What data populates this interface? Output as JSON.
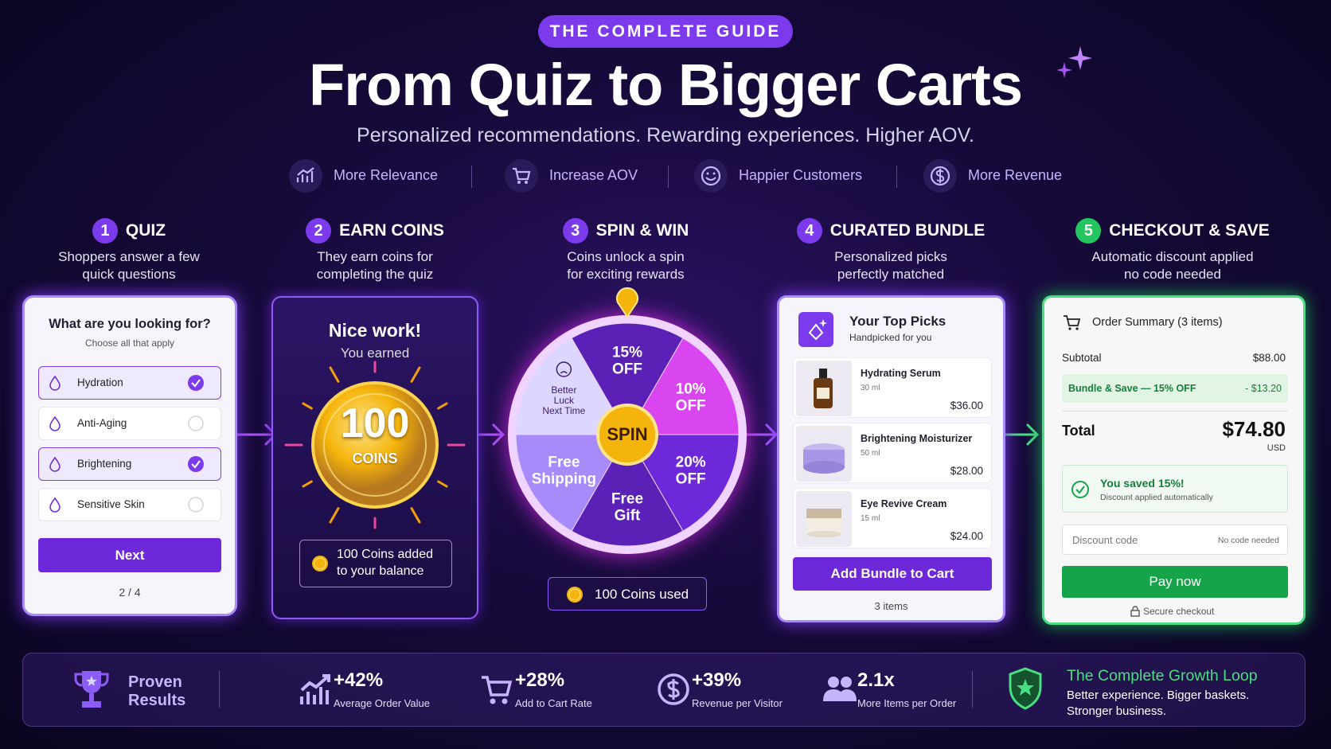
{
  "header": {
    "badge": "THE COMPLETE GUIDE",
    "title": "From Quiz to Bigger Carts",
    "subtitle": "Personalized recommendations. Rewarding experiences. Higher AOV."
  },
  "benefits": [
    "More Relevance",
    "Increase AOV",
    "Happier Customers",
    "More Revenue"
  ],
  "steps": [
    {
      "number": "1",
      "title": "QUIZ",
      "description": [
        "Shoppers answer a few",
        "quick questions"
      ],
      "color": "#7c3aed"
    },
    {
      "number": "2",
      "title": "EARN COINS",
      "description": [
        "They earn coins for",
        "completing the quiz"
      ],
      "color": "#7c3aed"
    },
    {
      "number": "3",
      "title": "SPIN & WIN",
      "description": [
        "Coins unlock a spin",
        "for exciting rewards"
      ],
      "color": "#7c3aed"
    },
    {
      "number": "4",
      "title": "CURATED BUNDLE",
      "description": [
        "Personalized picks",
        "perfectly matched"
      ],
      "color": "#7c3aed"
    },
    {
      "number": "5",
      "title": "CHECKOUT & SAVE",
      "description": [
        "Automatic discount applied",
        "no code needed"
      ],
      "color": "#22c55e"
    }
  ],
  "quiz": {
    "question": "What are you looking for?",
    "hint": "Choose all that apply",
    "options": [
      {
        "label": "Hydration",
        "checked": true
      },
      {
        "label": "Anti-Aging",
        "checked": false
      },
      {
        "label": "Brightening",
        "checked": true
      },
      {
        "label": "Sensitive Skin",
        "checked": false
      }
    ],
    "button": "Next",
    "progress": "2 / 4"
  },
  "coins": {
    "heading": "Nice work!",
    "subheading": "You earned",
    "amount": "100",
    "unit": "COINS",
    "note": [
      "100 Coins added",
      "to your balance"
    ]
  },
  "wheel": {
    "center": "SPIN",
    "segments": [
      {
        "lines": [
          "15%",
          "OFF"
        ],
        "color": "#5b21b6",
        "text_color": "#ffffff"
      },
      {
        "lines": [
          "10%",
          "OFF"
        ],
        "color": "#d946ef",
        "text_color": "#ffffff"
      },
      {
        "lines": [
          "20%",
          "OFF"
        ],
        "color": "#6d28d9",
        "text_color": "#ffffff"
      },
      {
        "lines": [
          "Free",
          "Gift"
        ],
        "color": "#5b21b6",
        "text_color": "#ffffff"
      },
      {
        "lines": [
          "Free",
          "Shipping"
        ],
        "color": "#a78bfa",
        "text_color": "#ffffff"
      },
      {
        "lines": [
          "Better",
          "Luck",
          "Next Time"
        ],
        "color": "#ddd6fe",
        "text_color": "#3b1d6e"
      }
    ],
    "footer": "100 Coins used"
  },
  "bundle": {
    "title": "Your Top Picks",
    "subtitle": "Handpicked for you",
    "products": [
      {
        "name": "Hydrating Serum",
        "size": "30 ml",
        "price": "$36.00"
      },
      {
        "name": "Brightening Moisturizer",
        "size": "50 ml",
        "price": "$28.00"
      },
      {
        "name": "Eye Revive Cream",
        "size": "15 ml",
        "price": "$24.00"
      }
    ],
    "button": "Add Bundle to Cart",
    "count": "3 items"
  },
  "checkout": {
    "title": "Order Summary (3 items)",
    "subtotal_label": "Subtotal",
    "subtotal": "$88.00",
    "discount_label": "Bundle & Save — 15% OFF",
    "discount": "- $13.20",
    "total_label": "Total",
    "total": "$74.80",
    "currency": "USD",
    "saved": "You saved 15%!",
    "saved_note": "Discount applied automatically",
    "code_placeholder": "Discount code",
    "code_note": "No code needed",
    "button": "Pay now",
    "secure": "Secure checkout"
  },
  "results": {
    "title": "Proven Results",
    "stats": [
      {
        "value": "+42%",
        "label": "Average Order Value"
      },
      {
        "value": "+28%",
        "label": "Add to Cart Rate"
      },
      {
        "value": "+39%",
        "label": "Revenue per Visitor"
      },
      {
        "value": "2.1x",
        "label": "More Items per Order"
      }
    ],
    "loop_title": "The Complete Growth Loop",
    "loop_text": [
      "Better experience. Bigger baskets.",
      "Stronger business."
    ]
  }
}
